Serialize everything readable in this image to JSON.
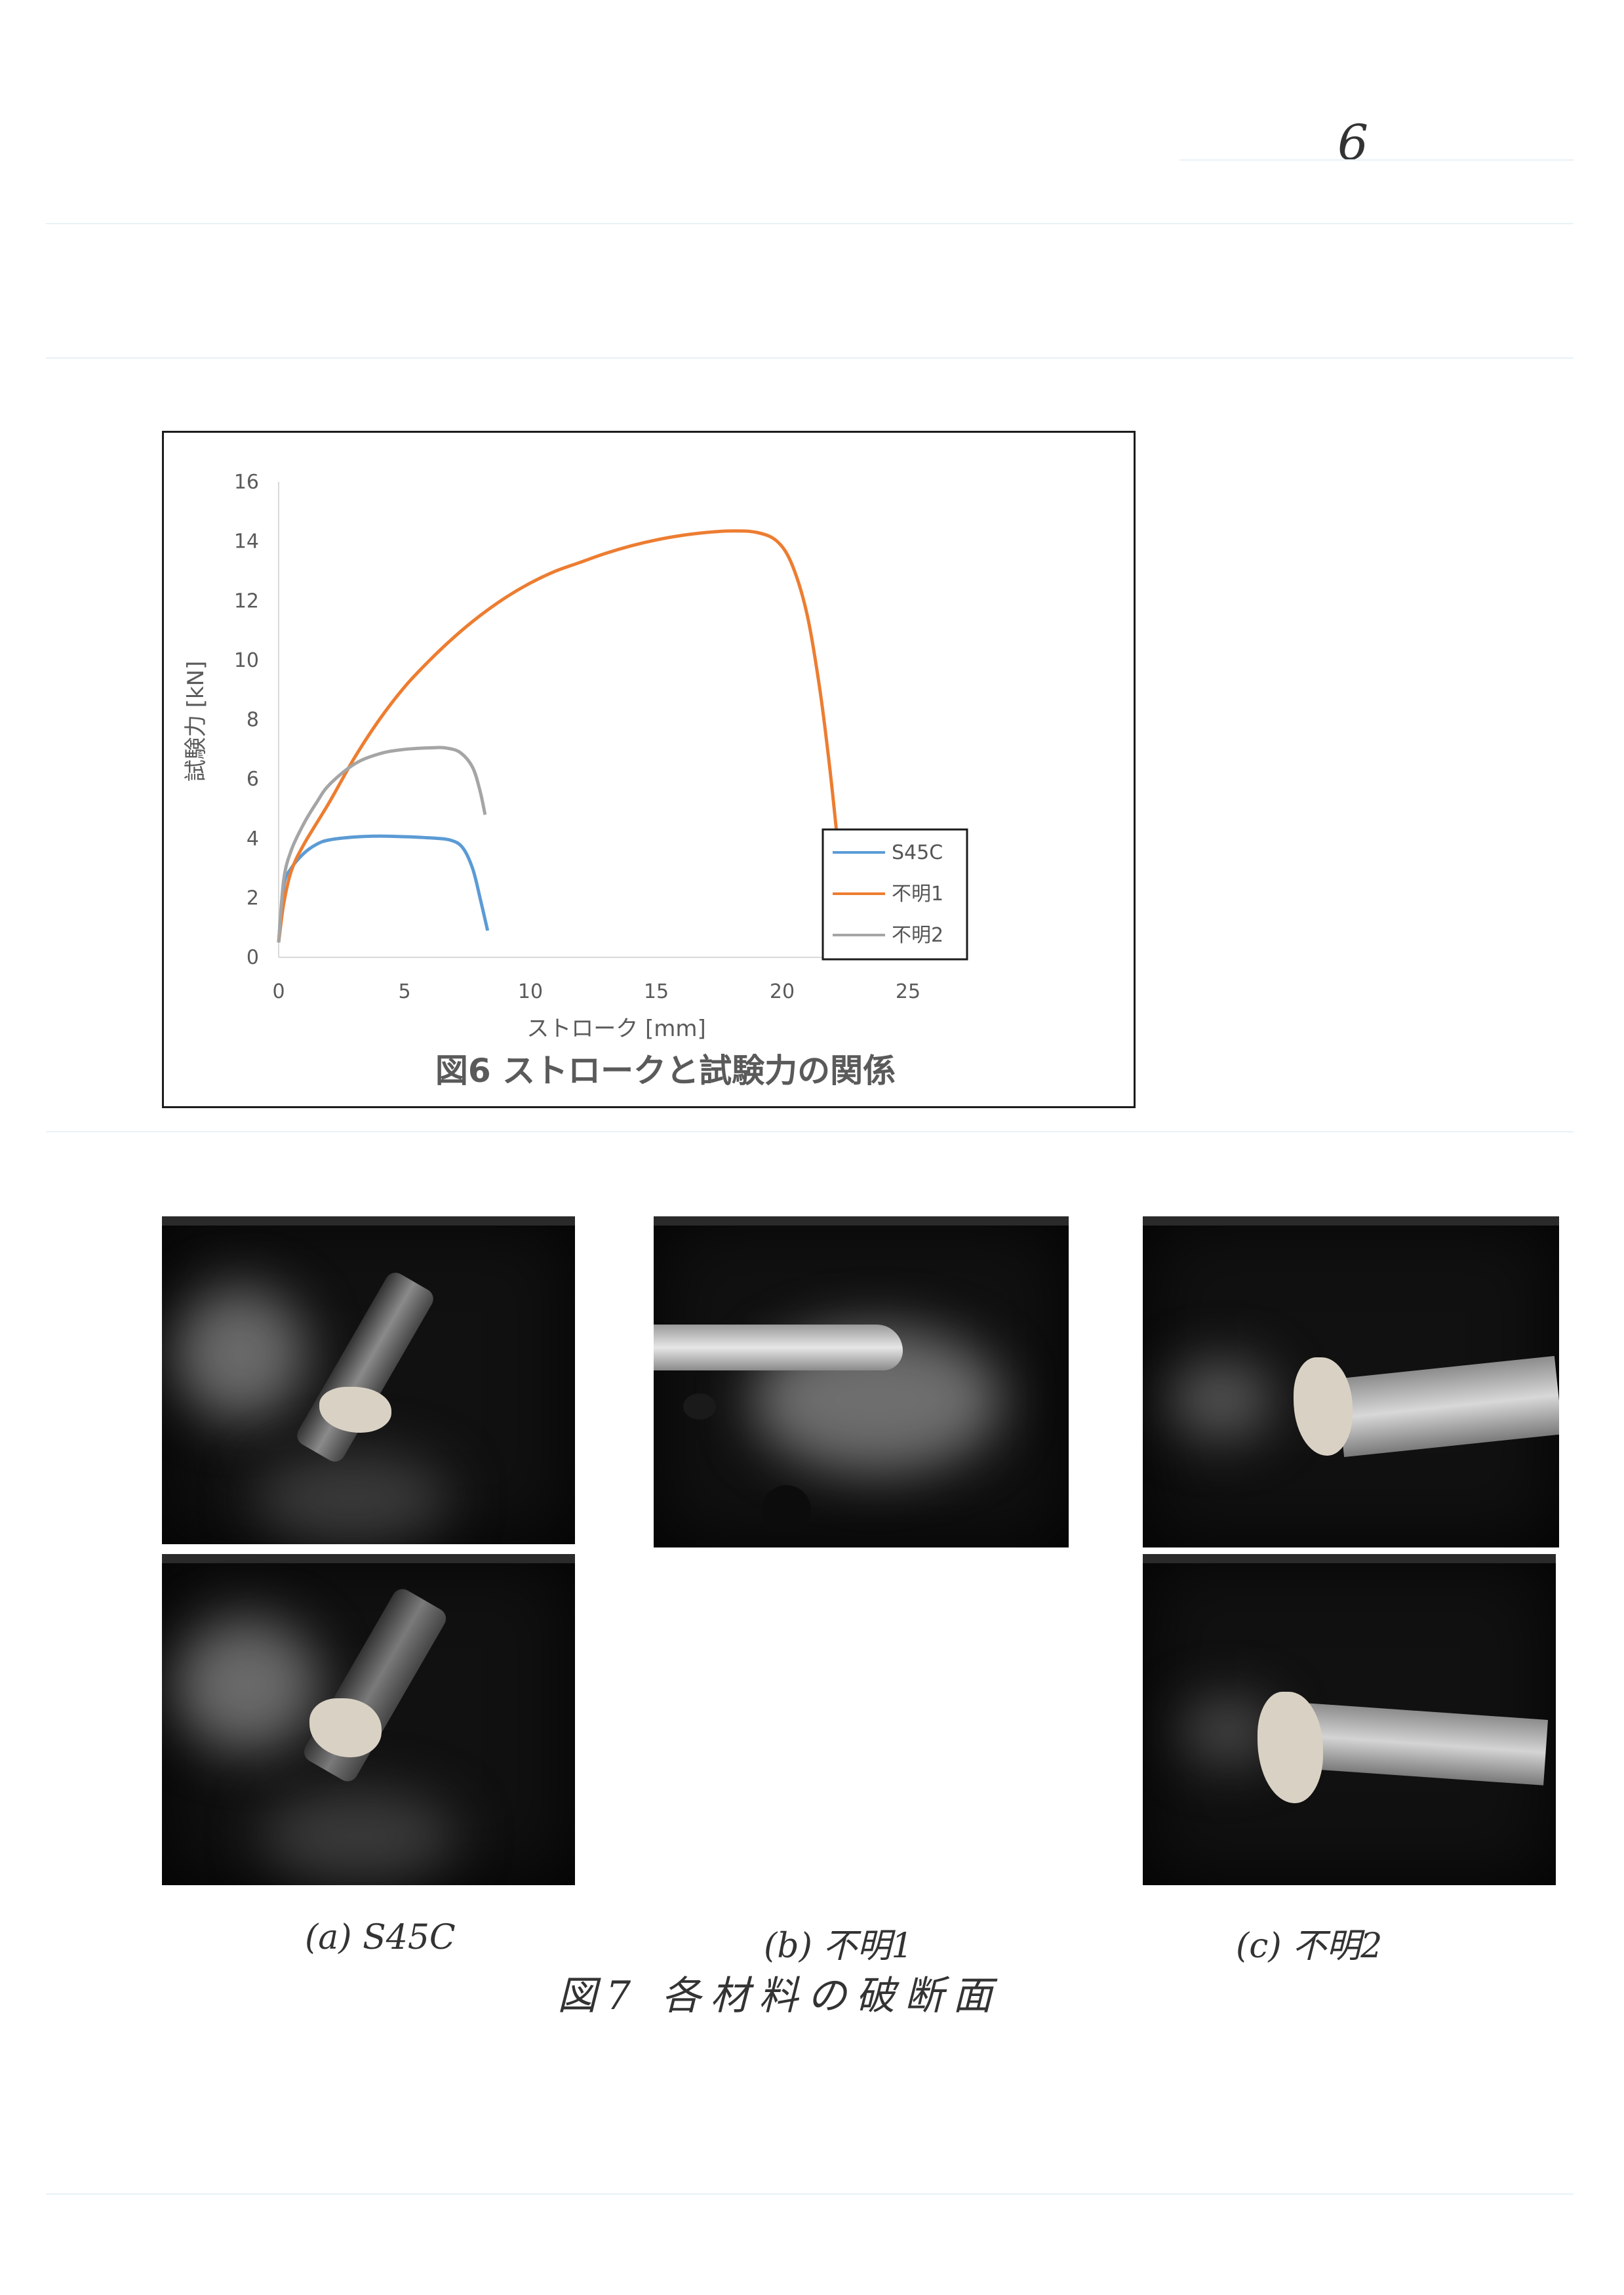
{
  "page_number": "6",
  "figure6": {
    "caption": "図6 ストロークと試験力の関係",
    "chart_data": {
      "type": "line",
      "title": "図6 ストロークと試験力の関係",
      "xlabel": "ストローク [mm]",
      "ylabel": "試験力 [kN]",
      "xlim": [
        0,
        25
      ],
      "ylim": [
        0,
        16
      ],
      "x_ticks": [
        "0",
        "5",
        "10",
        "15",
        "20",
        "25"
      ],
      "y_ticks": [
        "0",
        "2",
        "4",
        "6",
        "8",
        "10",
        "12",
        "14",
        "16"
      ],
      "grid": false,
      "legend_position": "bottom-right",
      "series": [
        {
          "name": "S45C",
          "color": "#5b9bd5",
          "x": [
            0,
            0.2,
            0.5,
            1,
            1.5,
            2,
            3,
            4,
            5,
            6,
            6.8,
            7.3,
            7.7,
            8.0,
            8.3
          ],
          "y": [
            0.5,
            2.4,
            3.0,
            3.5,
            3.8,
            3.95,
            4.05,
            4.08,
            4.06,
            4.02,
            3.95,
            3.7,
            3.0,
            2.0,
            0.9
          ]
        },
        {
          "name": "不明1",
          "color": "#ed7d31",
          "x": [
            0,
            0.2,
            0.5,
            1,
            2,
            3,
            4,
            5,
            6,
            7,
            8,
            9,
            10,
            11,
            12,
            13,
            14,
            15,
            16,
            17,
            18,
            19,
            19.8,
            20.4,
            21.0,
            21.5,
            21.9,
            22.2
          ],
          "y": [
            0.5,
            1.8,
            2.9,
            3.8,
            5.2,
            6.7,
            8.0,
            9.1,
            10.0,
            10.8,
            11.5,
            12.1,
            12.6,
            13.0,
            13.3,
            13.6,
            13.85,
            14.05,
            14.2,
            14.3,
            14.35,
            14.3,
            14.0,
            13.2,
            11.5,
            9.0,
            6.3,
            3.9
          ]
        },
        {
          "name": "不明2",
          "color": "#a5a5a5",
          "x": [
            0,
            0.2,
            0.5,
            1,
            1.5,
            2,
            3,
            4,
            5,
            6,
            6.6,
            7.2,
            7.7,
            8.0,
            8.2
          ],
          "y": [
            0.5,
            2.6,
            3.6,
            4.5,
            5.2,
            5.8,
            6.5,
            6.85,
            7.0,
            7.05,
            7.05,
            6.9,
            6.4,
            5.6,
            4.8
          ]
        }
      ]
    }
  },
  "figure7": {
    "caption": "図7 各材料の破断面",
    "labels": [
      "(a) S45C",
      "(b) 不明1",
      "(c) 不明2"
    ]
  }
}
